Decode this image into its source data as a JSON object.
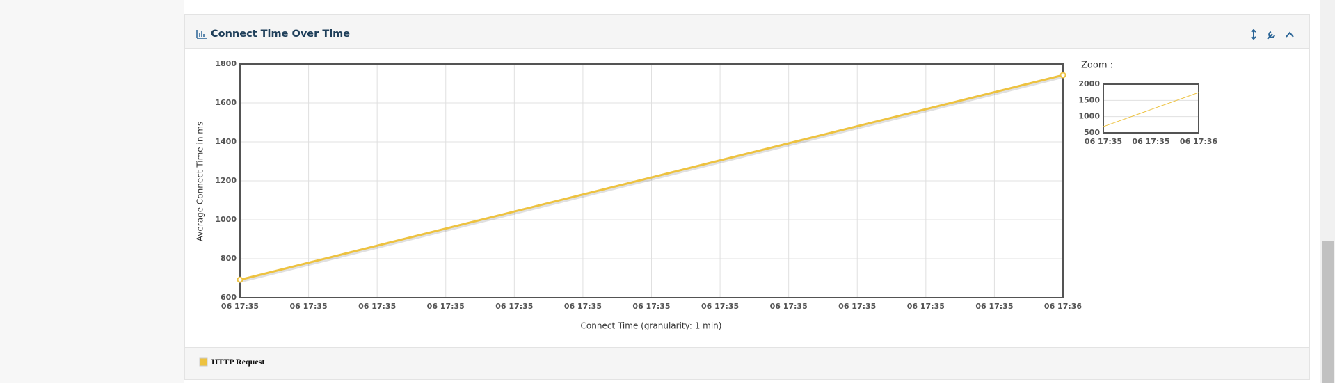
{
  "chart_data": {
    "type": "line",
    "title": "Connect Time Over Time",
    "x_label": "Connect Time (granularity: 1 min)",
    "y_label": "Average Connect Time in ms",
    "x": [
      0,
      60
    ],
    "series": [
      {
        "name": "HTTP Request",
        "color": "#edc240",
        "values": [
          692,
          1743
        ]
      }
    ],
    "xlim": [
      0,
      60
    ],
    "xticks": [
      {
        "value": 0,
        "label": "06 17:35"
      },
      {
        "value": 5,
        "label": "06 17:35"
      },
      {
        "value": 10,
        "label": "06 17:35"
      },
      {
        "value": 15,
        "label": "06 17:35"
      },
      {
        "value": 20,
        "label": "06 17:35"
      },
      {
        "value": 25,
        "label": "06 17:35"
      },
      {
        "value": 30,
        "label": "06 17:35"
      },
      {
        "value": 35,
        "label": "06 17:35"
      },
      {
        "value": 40,
        "label": "06 17:35"
      },
      {
        "value": 45,
        "label": "06 17:35"
      },
      {
        "value": 50,
        "label": "06 17:35"
      },
      {
        "value": 55,
        "label": "06 17:35"
      },
      {
        "value": 60,
        "label": "06 17:36"
      }
    ],
    "ylim": [
      600,
      1800
    ],
    "yticks": [
      600,
      800,
      1000,
      1200,
      1400,
      1600,
      1800
    ],
    "grid": true,
    "zoom": {
      "label": "Zoom :",
      "ylim": [
        500,
        2000
      ],
      "yticks": [
        500,
        1000,
        1500,
        2000
      ],
      "xlim": [
        0,
        60
      ],
      "xticks": [
        {
          "value": 0,
          "label": "06 17:35"
        },
        {
          "value": 30,
          "label": "06 17:35"
        },
        {
          "value": 60,
          "label": "06 17:36"
        }
      ]
    }
  }
}
